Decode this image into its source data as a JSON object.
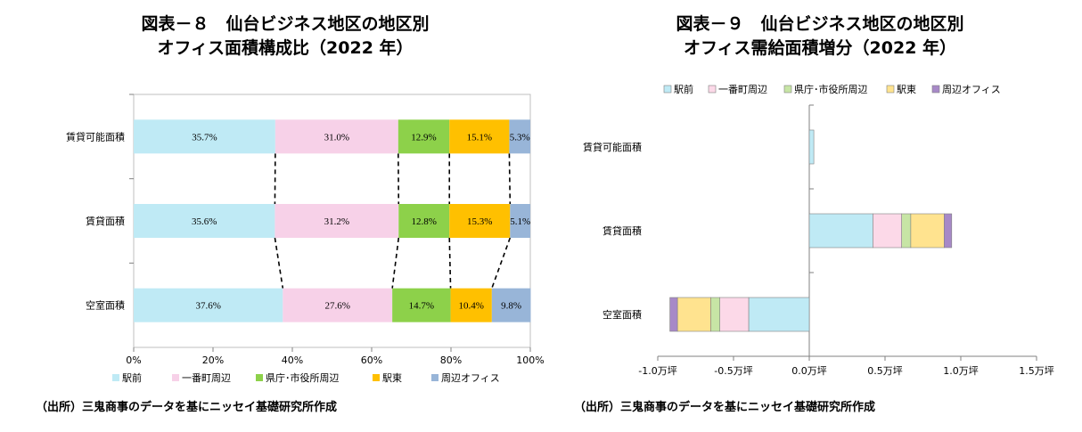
{
  "chart_data": [
    {
      "type": "bar",
      "stacked": true,
      "orientation": "horizontal",
      "title_line1": "図表－８　仙台ビジネス地区の地区別",
      "title_line2": "オフィス面積構成比（2022 年）",
      "categories": [
        "賃貸可能面積",
        "賃貸面積",
        "空室面積"
      ],
      "series": [
        {
          "name": "駅前",
          "color": "#bfeaf5",
          "values": [
            35.7,
            35.6,
            37.6
          ]
        },
        {
          "name": "一番町周辺",
          "color": "#f7d1e8",
          "values": [
            31.0,
            31.2,
            27.6
          ]
        },
        {
          "name": "県庁･市役所周辺",
          "color": "#8dd14a",
          "values": [
            12.9,
            12.8,
            14.7
          ]
        },
        {
          "name": "駅東",
          "color": "#ffc000",
          "values": [
            15.1,
            15.3,
            10.4
          ]
        },
        {
          "name": "周辺オフィス",
          "color": "#98b5d8",
          "values": [
            5.3,
            5.1,
            9.8
          ]
        }
      ],
      "data_labels": [
        [
          "35.7%",
          "31.0%",
          "12.9%",
          "15.1%",
          "5.3%"
        ],
        [
          "35.6%",
          "31.2%",
          "12.8%",
          "15.3%",
          "5.1%"
        ],
        [
          "37.6%",
          "27.6%",
          "14.7%",
          "10.4%",
          "9.8%"
        ]
      ],
      "xlim": [
        0,
        100
      ],
      "xticks": [
        "0%",
        "20%",
        "40%",
        "60%",
        "80%",
        "100%"
      ],
      "legend_position": "bottom",
      "connector_lines": "dashed"
    },
    {
      "type": "bar",
      "stacked": true,
      "orientation": "horizontal",
      "title_line1": "図表－９　仙台ビジネス地区の地区別",
      "title_line2": "オフィス需給面積増分（2022 年）",
      "categories": [
        "賃貸可能面積",
        "賃貸面積",
        "空室面積"
      ],
      "series": [
        {
          "name": "駅前",
          "color": "#bfeaf5",
          "values": [
            0.03,
            0.42,
            -0.4
          ]
        },
        {
          "name": "一番町周辺",
          "color": "#fcd9e8",
          "values": [
            0.0,
            0.19,
            -0.19
          ]
        },
        {
          "name": "県庁･市役所周辺",
          "color": "#c7e5a5",
          "values": [
            0.0,
            0.06,
            -0.06
          ]
        },
        {
          "name": "駅東",
          "color": "#ffe38f",
          "values": [
            0.0,
            0.22,
            -0.22
          ]
        },
        {
          "name": "周辺オフィス",
          "color": "#a789c7",
          "values": [
            0.0,
            0.05,
            -0.05
          ]
        }
      ],
      "xlim": [
        -1.0,
        1.5
      ],
      "xticks": [
        "-1.0万坪",
        "-0.5万坪",
        "0.0万坪",
        "0.5万坪",
        "1.0万坪",
        "1.5万坪"
      ],
      "legend_position": "top"
    }
  ],
  "sources": [
    "（出所）三鬼商事のデータを基にニッセイ基礎研究所作成",
    "（出所）三鬼商事のデータを基にニッセイ基礎研究所作成"
  ]
}
